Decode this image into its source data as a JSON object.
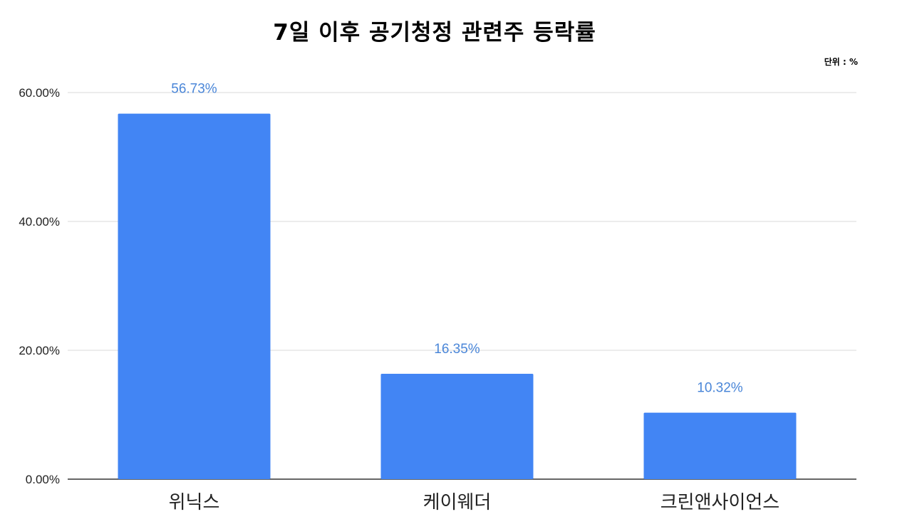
{
  "chart_data": {
    "type": "bar",
    "title": "7일 이후 공기청정 관련주 등락률",
    "unit_note": "단위 : %",
    "categories": [
      "위닉스",
      "케이웨더",
      "크린앤사이언스"
    ],
    "values": [
      56.73,
      16.35,
      10.32
    ],
    "data_labels": [
      "56.73%",
      "16.35%",
      "10.32%"
    ],
    "ylim": [
      0,
      60
    ],
    "yticks": [
      0,
      20,
      40,
      60
    ],
    "ytick_labels": [
      "0.00%",
      "20.00%",
      "40.00%",
      "60.00%"
    ],
    "xlabel": "",
    "ylabel": "",
    "grid": true,
    "legend": "none",
    "colors": {
      "bar": "#4285f4",
      "data_label": "#4a86d8",
      "grid": "#d9d9d9",
      "axis": "#333333"
    }
  }
}
